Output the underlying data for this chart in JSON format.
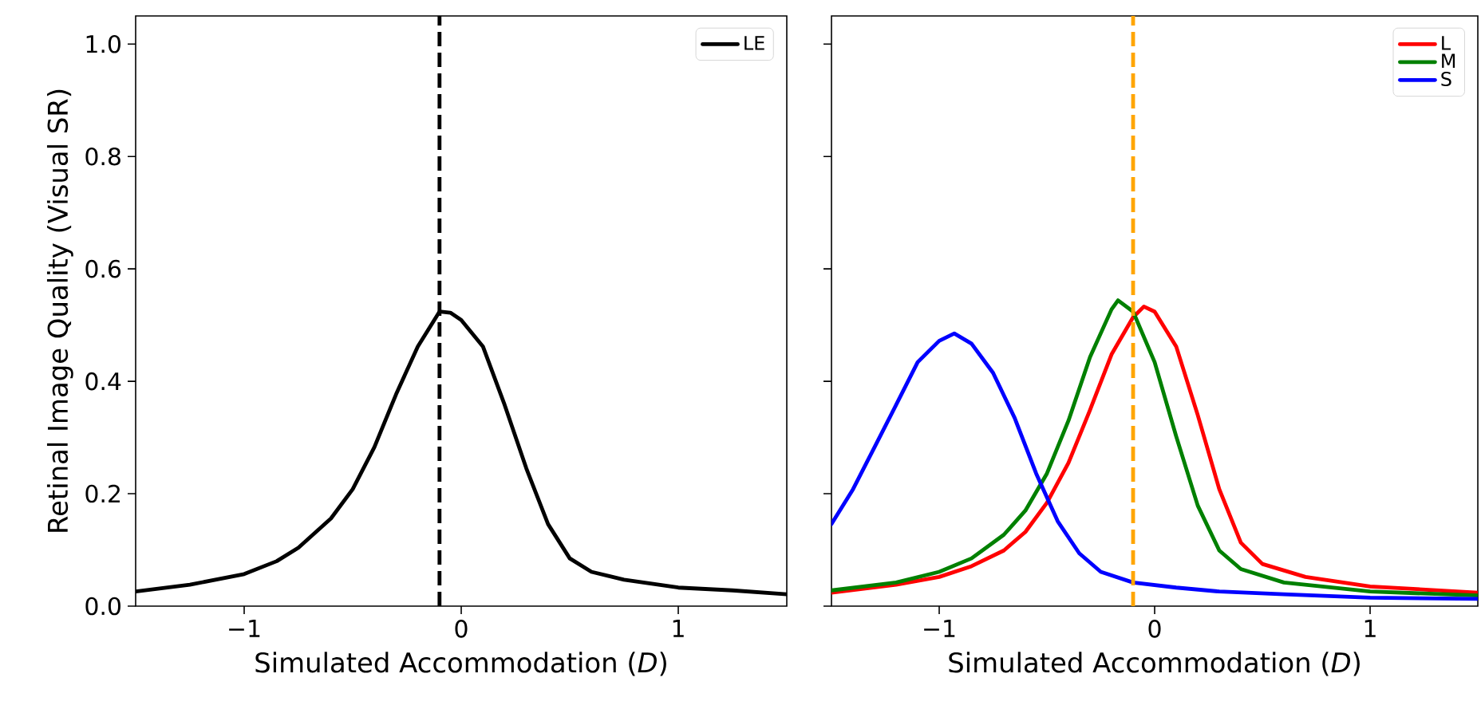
{
  "chart_data": [
    {
      "type": "line",
      "xlabel": "Simulated Accommodation (*D*)",
      "ylabel": "Retinal Image Quality (Visual SR)",
      "xlim": [
        -1.5,
        1.5
      ],
      "ylim": [
        0,
        1.05
      ],
      "xticks": [
        {
          "value": -1,
          "label": "−1"
        },
        0,
        1
      ],
      "yticks": [
        {
          "value": 0,
          "label": "0.0"
        },
        {
          "value": 0.2,
          "label": "0.2"
        },
        {
          "value": 0.4,
          "label": "0.4"
        },
        {
          "value": 0.6,
          "label": "0.6"
        },
        {
          "value": 0.8,
          "label": "0.8"
        },
        {
          "value": 1.0,
          "label": "1.0"
        }
      ],
      "legend": "top right",
      "ref_lines": [
        {
          "axis": "x",
          "value": -0.1,
          "color": "#000000",
          "line_style": "dashed"
        }
      ],
      "series": [
        {
          "name": "LE",
          "color": "#000000",
          "x": [
            -1.5,
            -1.25,
            -1.0,
            -0.85,
            -0.75,
            -0.6,
            -0.5,
            -0.4,
            -0.3,
            -0.2,
            -0.1,
            -0.05,
            0,
            0.1,
            0.2,
            0.3,
            0.4,
            0.5,
            0.6,
            0.75,
            1.0,
            1.25,
            1.5
          ],
          "values": [
            0.026,
            0.038,
            0.057,
            0.08,
            0.104,
            0.156,
            0.208,
            0.283,
            0.377,
            0.462,
            0.524,
            0.522,
            0.509,
            0.462,
            0.358,
            0.245,
            0.146,
            0.085,
            0.061,
            0.047,
            0.033,
            0.028,
            0.021
          ]
        }
      ]
    },
    {
      "type": "line",
      "xlabel": "Simulated Accommodation (*D*)",
      "xlim": [
        -1.5,
        1.5
      ],
      "ylim": [
        0,
        1.05
      ],
      "xticks": [
        {
          "value": -1,
          "label": "−1"
        },
        0,
        1
      ],
      "yticks": [
        {
          "value": 0,
          "label": null
        },
        {
          "value": 0.2,
          "label": null
        },
        {
          "value": 0.4,
          "label": null
        },
        {
          "value": 0.6,
          "label": null
        },
        {
          "value": 0.8,
          "label": null
        },
        {
          "value": 1.0,
          "label": null
        }
      ],
      "tick_labels": "x",
      "legend": "top right",
      "ref_lines": [
        {
          "axis": "x",
          "value": -0.1,
          "color": "#ffa500",
          "line_style": "dashed"
        }
      ],
      "series": [
        {
          "name": "L",
          "color": "#ff0000",
          "x": [
            -1.5,
            -1.2,
            -1.0,
            -0.85,
            -0.7,
            -0.6,
            -0.5,
            -0.4,
            -0.3,
            -0.2,
            -0.1,
            -0.05,
            0,
            0.1,
            0.2,
            0.3,
            0.4,
            0.5,
            0.7,
            1.0,
            1.5
          ],
          "values": [
            0.024,
            0.038,
            0.052,
            0.071,
            0.099,
            0.132,
            0.184,
            0.255,
            0.349,
            0.448,
            0.514,
            0.533,
            0.524,
            0.462,
            0.34,
            0.208,
            0.113,
            0.075,
            0.052,
            0.035,
            0.024
          ]
        },
        {
          "name": "M",
          "color": "#008000",
          "x": [
            -1.5,
            -1.2,
            -1.0,
            -0.85,
            -0.7,
            -0.6,
            -0.5,
            -0.4,
            -0.3,
            -0.2,
            -0.17,
            -0.1,
            0,
            0.1,
            0.2,
            0.3,
            0.4,
            0.6,
            1.0,
            1.5
          ],
          "values": [
            0.028,
            0.042,
            0.061,
            0.085,
            0.127,
            0.17,
            0.236,
            0.33,
            0.443,
            0.528,
            0.544,
            0.524,
            0.434,
            0.302,
            0.179,
            0.099,
            0.066,
            0.042,
            0.026,
            0.019
          ]
        },
        {
          "name": "S",
          "color": "#0000ff",
          "x": [
            -1.5,
            -1.4,
            -1.3,
            -1.2,
            -1.1,
            -1.0,
            -0.93,
            -0.85,
            -0.75,
            -0.65,
            -0.55,
            -0.45,
            -0.35,
            -0.25,
            -0.1,
            0.1,
            0.3,
            0.6,
            1.0,
            1.5
          ],
          "values": [
            0.146,
            0.208,
            0.283,
            0.358,
            0.434,
            0.472,
            0.485,
            0.467,
            0.415,
            0.335,
            0.236,
            0.151,
            0.094,
            0.061,
            0.042,
            0.033,
            0.026,
            0.021,
            0.015,
            0.013
          ]
        }
      ]
    }
  ]
}
